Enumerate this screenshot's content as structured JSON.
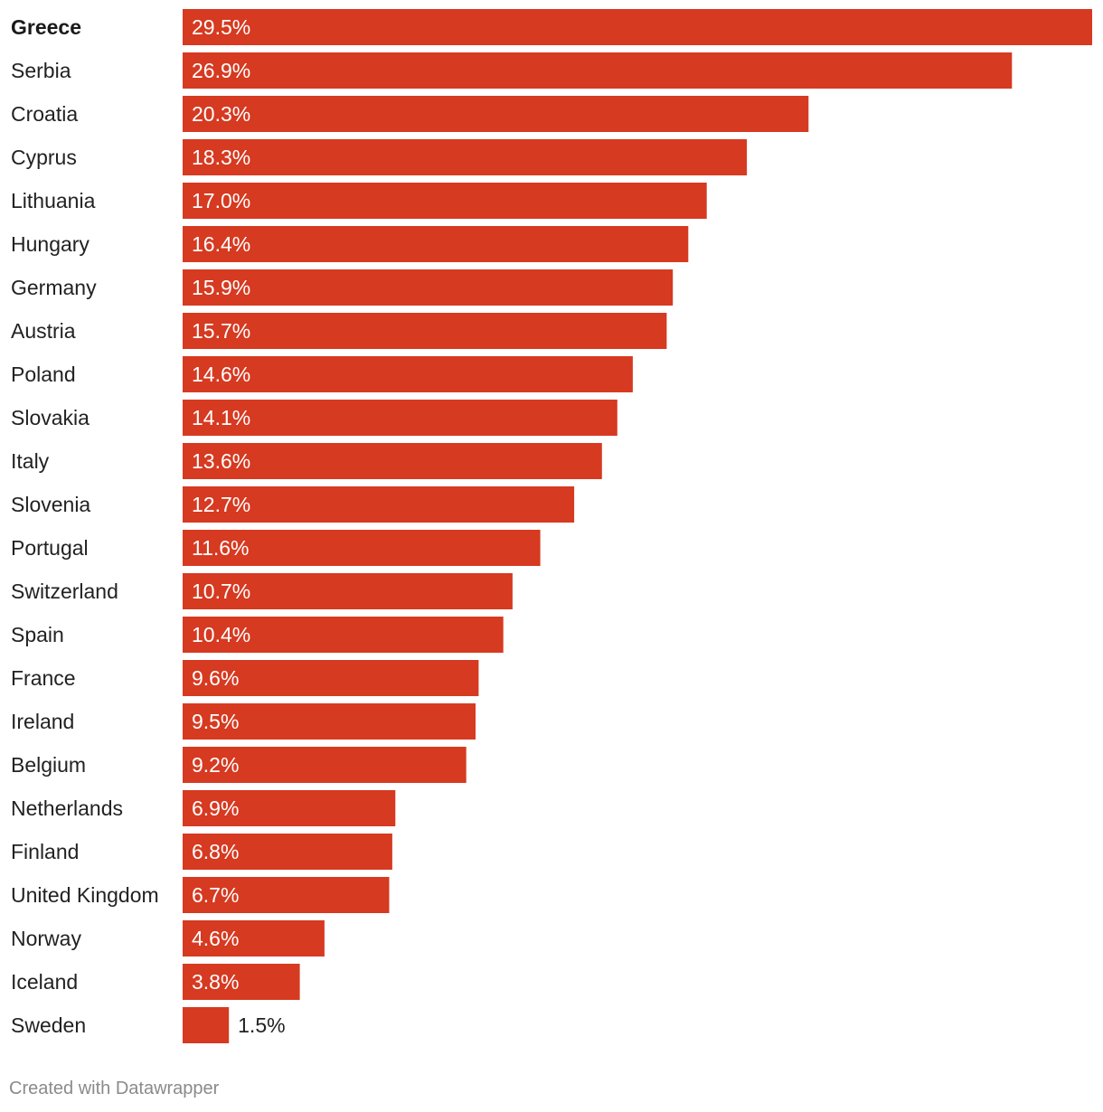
{
  "chart_data": {
    "type": "bar",
    "orientation": "horizontal",
    "categories": [
      "Greece",
      "Serbia",
      "Croatia",
      "Cyprus",
      "Lithuania",
      "Hungary",
      "Germany",
      "Austria",
      "Poland",
      "Slovakia",
      "Italy",
      "Slovenia",
      "Portugal",
      "Switzerland",
      "Spain",
      "France",
      "Ireland",
      "Belgium",
      "Netherlands",
      "Finland",
      "United Kingdom",
      "Norway",
      "Iceland",
      "Sweden"
    ],
    "values": [
      29.5,
      26.9,
      20.3,
      18.3,
      17.0,
      16.4,
      15.9,
      15.7,
      14.6,
      14.1,
      13.6,
      12.7,
      11.6,
      10.7,
      10.4,
      9.6,
      9.5,
      9.2,
      6.9,
      6.8,
      6.7,
      4.6,
      3.8,
      1.5
    ],
    "value_labels": [
      "29.5%",
      "26.9%",
      "20.3%",
      "18.3%",
      "17.0%",
      "16.4%",
      "15.9%",
      "15.7%",
      "14.6%",
      "14.1%",
      "13.6%",
      "12.7%",
      "11.6%",
      "10.7%",
      "10.4%",
      "9.6%",
      "9.5%",
      "9.2%",
      "6.9%",
      "6.8%",
      "6.7%",
      "4.6%",
      "3.8%",
      "1.5%"
    ],
    "highlighted_category": "Greece",
    "xlim": [
      0,
      29.5
    ],
    "grid": false,
    "legend": "none",
    "bar_color": "#d63a21"
  },
  "footer": {
    "credit": "Created with Datawrapper"
  }
}
